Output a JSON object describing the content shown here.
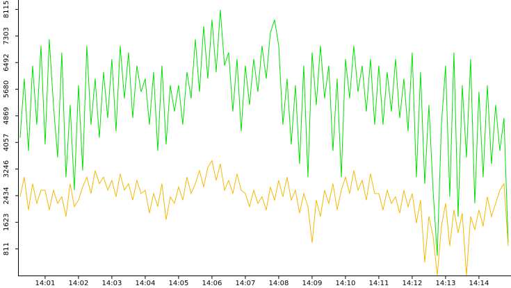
{
  "chart_data": {
    "type": "line",
    "x": [
      0.25,
      0.375,
      0.5,
      0.625,
      0.75,
      0.875,
      1.0,
      1.125,
      1.25,
      1.375,
      1.5,
      1.625,
      1.75,
      1.875,
      2.0,
      2.125,
      2.25,
      2.375,
      2.5,
      2.625,
      2.75,
      2.875,
      3.0,
      3.125,
      3.25,
      3.375,
      3.5,
      3.625,
      3.75,
      3.875,
      4.0,
      4.125,
      4.25,
      4.375,
      4.5,
      4.625,
      4.75,
      4.875,
      5.0,
      5.125,
      5.25,
      5.375,
      5.5,
      5.625,
      5.75,
      5.875,
      6.0,
      6.125,
      6.25,
      6.375,
      6.5,
      6.625,
      6.75,
      6.875,
      7.0,
      7.125,
      7.25,
      7.375,
      7.5,
      7.625,
      7.75,
      7.875,
      8.0,
      8.125,
      8.25,
      8.375,
      8.5,
      8.625,
      8.75,
      8.875,
      9.0,
      9.125,
      9.25,
      9.375,
      9.5,
      9.625,
      9.75,
      9.875,
      10.0,
      10.125,
      10.25,
      10.375,
      10.5,
      10.625,
      10.75,
      10.875,
      11.0,
      11.125,
      11.25,
      11.375,
      11.5,
      11.625,
      11.75,
      11.875,
      12.0,
      12.125,
      12.25,
      12.375,
      12.5,
      12.625,
      12.75,
      12.875,
      13.0,
      13.125,
      13.25,
      13.375,
      13.5,
      13.625,
      13.75,
      13.875,
      14.0,
      14.125,
      14.25,
      14.375,
      14.5,
      14.625,
      14.75,
      14.875
    ],
    "series": [
      {
        "color": "#00e000",
        "values": [
          4200,
          6000,
          3800,
          6400,
          4600,
          7000,
          4000,
          7200,
          5200,
          3600,
          6800,
          3000,
          5200,
          2600,
          5800,
          3200,
          7000,
          4600,
          6000,
          4200,
          6200,
          4800,
          6600,
          4400,
          7000,
          5400,
          6800,
          4800,
          6400,
          5600,
          6000,
          4600,
          6200,
          3800,
          6400,
          4000,
          5800,
          5000,
          5800,
          4600,
          6200,
          5400,
          7200,
          5600,
          7600,
          6000,
          7800,
          6200,
          8100,
          6400,
          6800,
          5000,
          6600,
          4400,
          6400,
          5200,
          6600,
          5600,
          7000,
          6000,
          7400,
          7800,
          7000,
          4600,
          6000,
          4000,
          5800,
          3400,
          6400,
          3000,
          6800,
          5200,
          7000,
          5400,
          6400,
          3800,
          6000,
          3000,
          6600,
          5400,
          7000,
          5600,
          6400,
          5000,
          6600,
          4600,
          6400,
          4600,
          6200,
          5000,
          6600,
          4800,
          6000,
          4400,
          6800,
          3000,
          6200,
          2800,
          5200,
          2600,
          600,
          4600,
          6400,
          2400,
          6800,
          1800,
          5800,
          3600,
          6600,
          2200,
          5600,
          3000,
          5800,
          3400,
          5200,
          3800,
          4800,
          1000
        ]
      },
      {
        "color": "#f5b800",
        "values": [
          2400,
          3000,
          2000,
          2800,
          2200,
          2600,
          2600,
          2000,
          2600,
          2200,
          2400,
          1800,
          2800,
          2100,
          2300,
          2700,
          3000,
          2500,
          3200,
          2800,
          3000,
          2600,
          2900,
          2400,
          3100,
          2600,
          2800,
          2300,
          2900,
          2500,
          2600,
          1900,
          2500,
          2100,
          2800,
          1700,
          2400,
          2200,
          2700,
          2300,
          3000,
          2500,
          2800,
          3200,
          2700,
          3300,
          3500,
          2900,
          3400,
          2600,
          2900,
          2500,
          3100,
          2600,
          2500,
          2100,
          2600,
          2200,
          2400,
          2000,
          2700,
          2300,
          2900,
          2400,
          3000,
          2300,
          2600,
          1900,
          2500,
          2100,
          1000,
          2300,
          1800,
          2600,
          2200,
          2800,
          2000,
          2600,
          3000,
          2500,
          3200,
          2600,
          2900,
          2300,
          3100,
          2500,
          2500,
          2000,
          2600,
          2200,
          2400,
          1900,
          2600,
          2100,
          2500,
          1600,
          2300,
          400,
          1800,
          1200,
          0,
          1500,
          2200,
          900,
          2000,
          1300,
          1900,
          0,
          1800,
          1400,
          2000,
          1500,
          2400,
          1800,
          2200,
          2600,
          2800,
          900
        ]
      }
    ],
    "xlim": [
      0.2,
      14.96
    ],
    "xticks": [
      {
        "value": 1,
        "label": "14:01"
      },
      {
        "value": 2,
        "label": "14:02"
      },
      {
        "value": 3,
        "label": "14:03"
      },
      {
        "value": 4,
        "label": "14:04"
      },
      {
        "value": 5,
        "label": "14:05"
      },
      {
        "value": 6,
        "label": "14:06"
      },
      {
        "value": 7,
        "label": "14:07"
      },
      {
        "value": 8,
        "label": "14:08"
      },
      {
        "value": 9,
        "label": "14:09"
      },
      {
        "value": 10,
        "label": "14:10"
      },
      {
        "value": 11,
        "label": "14:11"
      },
      {
        "value": 12,
        "label": "14:12"
      },
      {
        "value": 13,
        "label": "14:13"
      },
      {
        "value": 14,
        "label": "14:14"
      }
    ],
    "ylim": [
      0,
      8400
    ],
    "yticks": [
      811,
      1623,
      2434,
      3246,
      4057,
      4869,
      5680,
      6492,
      7303,
      8115
    ]
  }
}
